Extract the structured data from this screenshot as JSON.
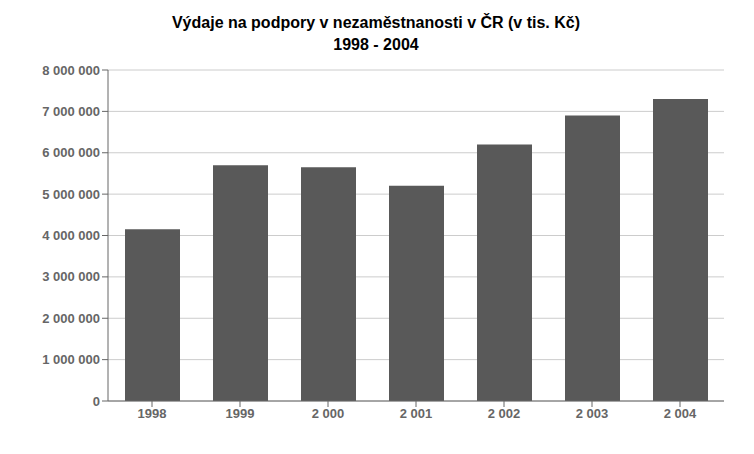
{
  "chart_data": {
    "type": "bar",
    "title": "Výdaje na podpory v nezaměstnanosti v ČR (v tis. Kč)",
    "subtitle": "1998 - 2004",
    "categories": [
      "1998",
      "1999",
      "2 000",
      "2 001",
      "2 002",
      "2 003",
      "2 004"
    ],
    "values": [
      4150000,
      5700000,
      5650000,
      5200000,
      6200000,
      6900000,
      7300000
    ],
    "color": "#595959",
    "ylim": [
      0,
      8000000
    ],
    "yticks": [
      0,
      {
        "value": 1000000,
        "label": "1 000 000"
      },
      {
        "value": 2000000,
        "label": "2 000 000"
      },
      {
        "value": 3000000,
        "label": "3 000 000"
      },
      {
        "value": 4000000,
        "label": "4 000 000"
      },
      {
        "value": 5000000,
        "label": "5 000 000"
      },
      {
        "value": 6000000,
        "label": "6 000 000"
      },
      {
        "value": 7000000,
        "label": "7 000 000"
      },
      {
        "value": 8000000,
        "label": "8 000 000"
      }
    ],
    "grid": true
  }
}
